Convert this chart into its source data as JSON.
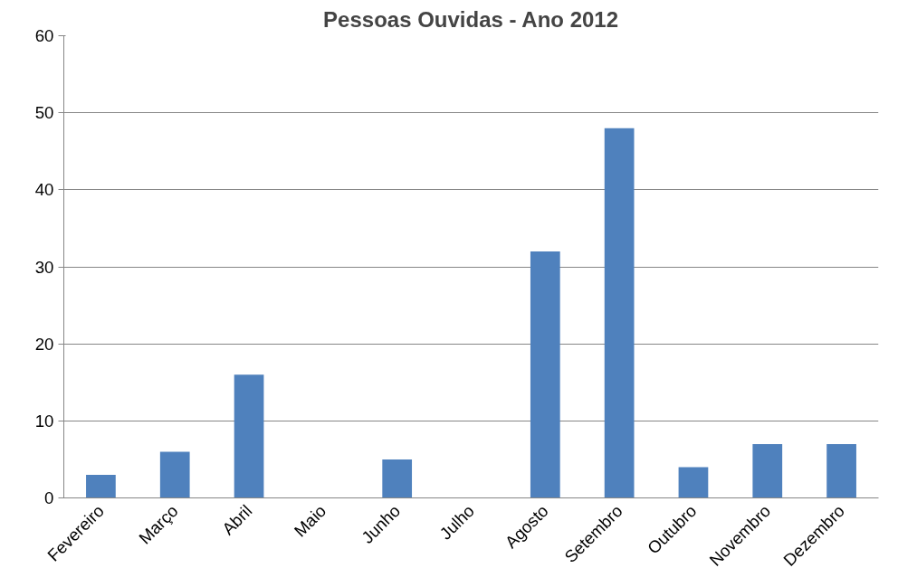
{
  "chart_data": {
    "type": "bar",
    "title": "Pessoas Ouvidas - Ano 2012",
    "categories": [
      "Fevereiro",
      "Março",
      "Abril",
      "Maio",
      "Junho",
      "Julho",
      "Agosto",
      "Setembro",
      "Outubro",
      "Novembro",
      "Dezembro"
    ],
    "values": [
      3,
      6,
      16,
      0,
      5,
      0,
      32,
      48,
      4,
      7,
      7
    ],
    "color": "#4f81bd",
    "ylim": [
      0,
      60
    ],
    "yticks": [
      0,
      10,
      20,
      30,
      40,
      50,
      60
    ],
    "grid": "y"
  }
}
